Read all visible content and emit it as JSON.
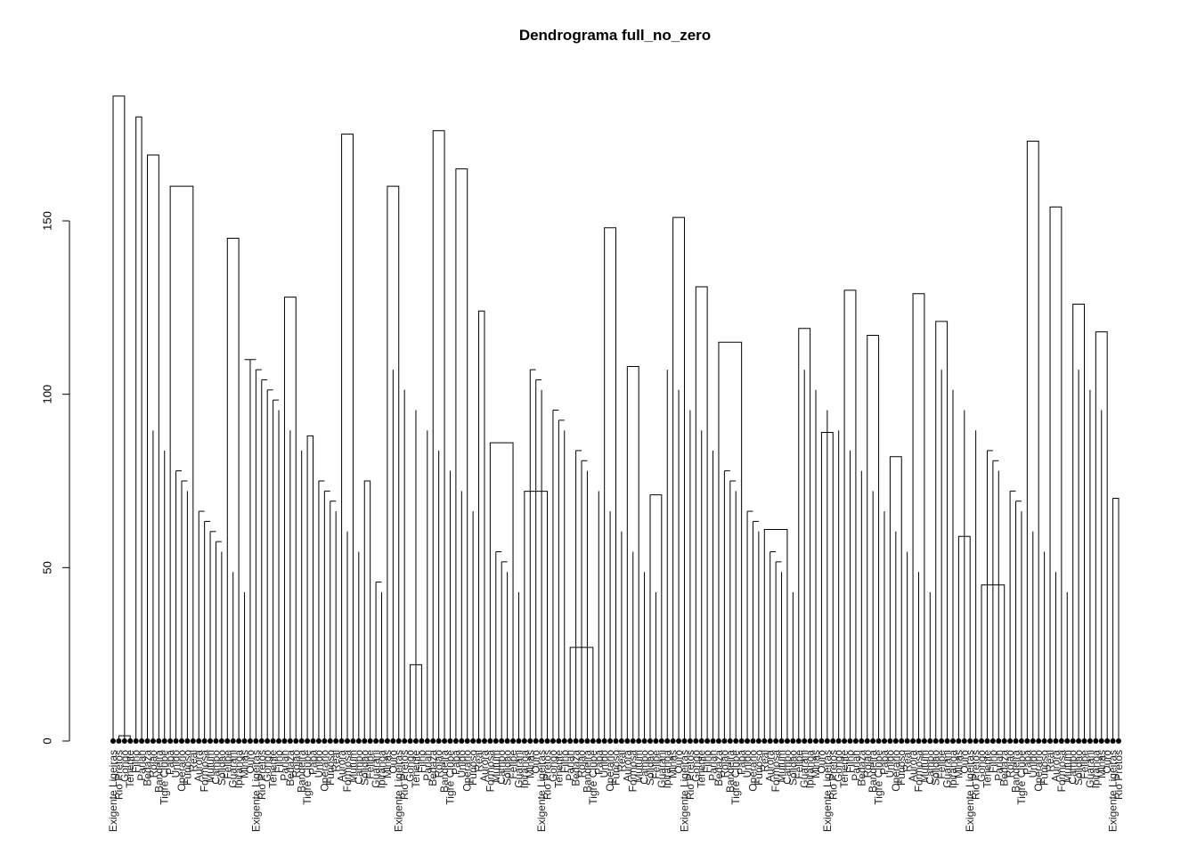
{
  "chart_data": {
    "type": "dendrogram",
    "title": "Dendrograma full_no_zero",
    "xlabel": "",
    "ylabel": "",
    "ylim": [
      0,
      190
    ],
    "y_ticks": [
      0,
      50,
      100,
      150
    ],
    "y_tick_labels": [
      "0",
      "50",
      "100",
      "150"
    ],
    "n_leaves": 177,
    "leaf_label_text": [
      "Exigente Ligeiras",
      "Rio Pretos",
      "Gongo",
      "Tenente",
      "Filho",
      "Pariah",
      "Bedaza",
      "Rojao",
      "Bandeira",
      "Tigre Clube",
      "Papa",
      "Unido",
      "Operario",
      "Furioso",
      "Real",
      "Aurora",
      "Formosa",
      "Mutum",
      "Campo",
      "Solidao",
      "Felipe",
      "Guarani",
      "Ipiranga",
      "Minas",
      "Ouro"
    ],
    "merges": [
      {
        "a": 0,
        "b": 2,
        "height": 186
      },
      {
        "a": 1,
        "b": 3,
        "height": 1.5
      },
      {
        "a": 4,
        "b": 5,
        "height": 180
      },
      {
        "a": 6,
        "b": 8,
        "height": 169
      },
      {
        "a": 10,
        "b": 14,
        "height": 160
      },
      {
        "a": 20,
        "b": 22,
        "height": 145
      },
      {
        "a": 30,
        "b": 32,
        "height": 128
      },
      {
        "a": 34,
        "b": 35,
        "height": 88
      },
      {
        "a": 40,
        "b": 42,
        "height": 175
      },
      {
        "a": 44,
        "b": 45,
        "height": 75
      },
      {
        "a": 48,
        "b": 50,
        "height": 160
      },
      {
        "a": 52,
        "b": 54,
        "height": 22
      },
      {
        "a": 56,
        "b": 58,
        "height": 176
      },
      {
        "a": 60,
        "b": 62,
        "height": 165
      },
      {
        "a": 64,
        "b": 65,
        "height": 124
      },
      {
        "a": 66,
        "b": 70,
        "height": 86
      },
      {
        "a": 72,
        "b": 76,
        "height": 72
      },
      {
        "a": 80,
        "b": 84,
        "height": 27
      },
      {
        "a": 86,
        "b": 88,
        "height": 148
      },
      {
        "a": 90,
        "b": 92,
        "height": 108
      },
      {
        "a": 94,
        "b": 96,
        "height": 71
      },
      {
        "a": 98,
        "b": 100,
        "height": 151
      },
      {
        "a": 102,
        "b": 104,
        "height": 131
      },
      {
        "a": 106,
        "b": 110,
        "height": 115
      },
      {
        "a": 114,
        "b": 118,
        "height": 61
      },
      {
        "a": 120,
        "b": 122,
        "height": 119
      },
      {
        "a": 124,
        "b": 126,
        "height": 89
      },
      {
        "a": 128,
        "b": 130,
        "height": 130
      },
      {
        "a": 132,
        "b": 134,
        "height": 117
      },
      {
        "a": 136,
        "b": 138,
        "height": 82
      },
      {
        "a": 140,
        "b": 142,
        "height": 129
      },
      {
        "a": 144,
        "b": 146,
        "height": 121
      },
      {
        "a": 148,
        "b": 150,
        "height": 59
      },
      {
        "a": 152,
        "b": 156,
        "height": 45
      },
      {
        "a": 160,
        "b": 162,
        "height": 173
      },
      {
        "a": 164,
        "b": 166,
        "height": 154
      },
      {
        "a": 168,
        "b": 170,
        "height": 126
      },
      {
        "a": 172,
        "b": 174,
        "height": 118
      },
      {
        "a": 175,
        "b": 176,
        "height": 70
      }
    ]
  }
}
